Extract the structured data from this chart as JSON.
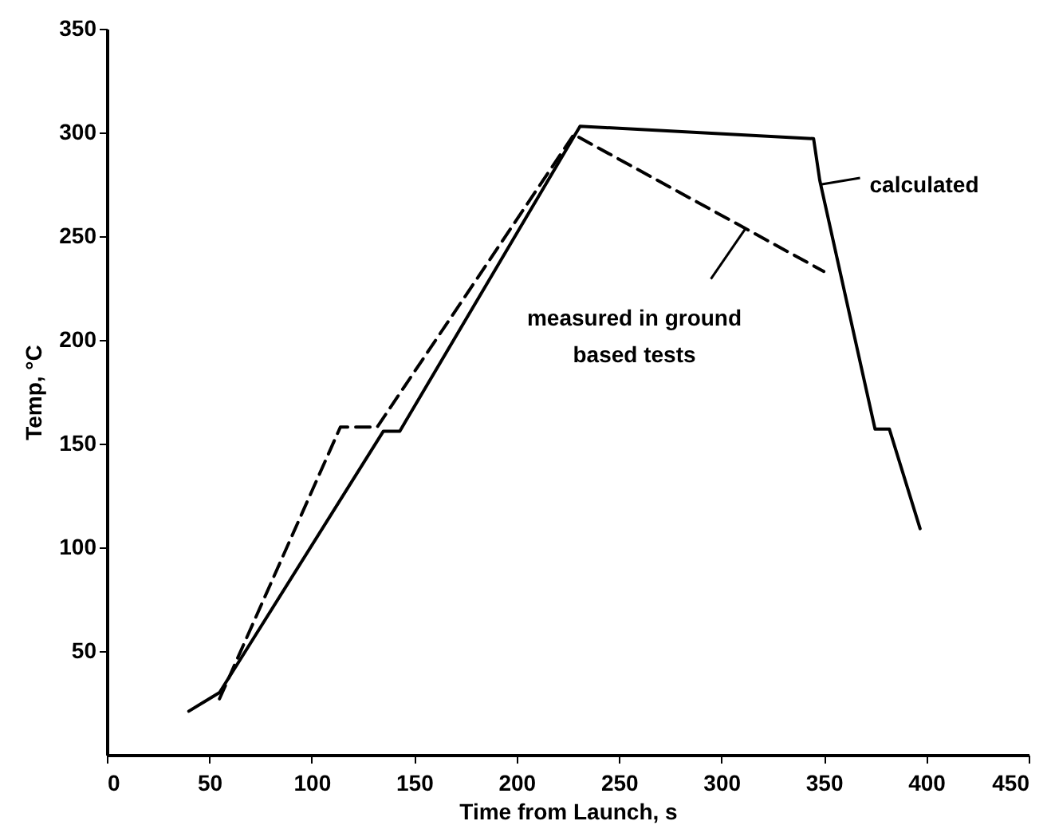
{
  "chart_data": {
    "type": "line",
    "xlabel": "Time from Launch, s",
    "ylabel": "Temp, °C",
    "xlim": [
      0,
      450
    ],
    "xticks": [
      0,
      50,
      100,
      150,
      200,
      250,
      300,
      350,
      400,
      450
    ],
    "ylim": [
      0,
      350
    ],
    "yticks": [
      50,
      100,
      150,
      200,
      250,
      300,
      350
    ],
    "grid": false,
    "marker": "none",
    "series": [
      {
        "color": "#000000",
        "line_style": "solid",
        "x": [
          40,
          55,
          135,
          143,
          231,
          345,
          348,
          375,
          382,
          397
        ],
        "values": [
          21,
          30,
          156,
          156,
          303,
          297,
          277,
          157,
          157,
          109
        ]
      },
      {
        "color": "#000000",
        "line_style": "dashed",
        "x": [
          55,
          114,
          132,
          228,
          350
        ],
        "values": [
          27,
          158,
          158,
          299,
          233
        ]
      }
    ],
    "annotations": [
      {
        "text": "calculated",
        "x": 349,
        "y": 275
      },
      {
        "text": "measured in ground based tests",
        "x": 312,
        "y": 254
      }
    ]
  }
}
